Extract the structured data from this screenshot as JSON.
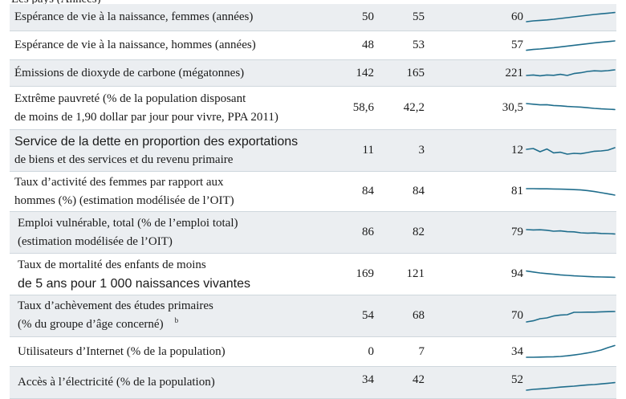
{
  "header_fragment": "Les pays (Années)",
  "rows": [
    {
      "label": [
        "Espérance de vie à la naissance, femmes (années)"
      ],
      "v1": "50",
      "v2": "55",
      "v3": "60",
      "trend": [
        0.25,
        0.3,
        0.33,
        0.36,
        0.4,
        0.45,
        0.5,
        0.55,
        0.6,
        0.65,
        0.7,
        0.74,
        0.78,
        0.82
      ]
    },
    {
      "label": [
        "Espérance de vie à la naissance, hommes (années)"
      ],
      "v1": "48",
      "v2": "53",
      "v3": "57",
      "trend": [
        0.22,
        0.27,
        0.3,
        0.34,
        0.38,
        0.43,
        0.48,
        0.53,
        0.58,
        0.63,
        0.68,
        0.72,
        0.76,
        0.8
      ]
    },
    {
      "label": [
        "Émissions de dioxyde de carbone (mégatonnes)"
      ],
      "v1": "142",
      "v2": "165",
      "v3": "221",
      "trend": [
        0.35,
        0.38,
        0.33,
        0.38,
        0.36,
        0.42,
        0.35,
        0.47,
        0.52,
        0.6,
        0.64,
        0.62,
        0.65,
        0.7
      ]
    },
    {
      "label": [
        "Extrême pauvreté (% de la population disposant",
        "de moins de 1,90 dollar par jour pour vivre, PPA 2011)"
      ],
      "v1": "58,6",
      "v2": "42,2",
      "v3": "30,5",
      "trend": [
        0.8,
        0.76,
        0.72,
        0.73,
        0.68,
        0.66,
        0.62,
        0.6,
        0.58,
        0.54,
        0.5,
        0.47,
        0.45,
        0.43
      ]
    },
    {
      "label": [
        "Service de la dette en proportion des exportations",
        "de biens et des services et du revenu primaire"
      ],
      "sans_first": true,
      "v1": "11",
      "v2": "3",
      "v3": "12",
      "trend": [
        0.6,
        0.65,
        0.45,
        0.62,
        0.38,
        0.42,
        0.3,
        0.35,
        0.33,
        0.4,
        0.48,
        0.5,
        0.55,
        0.7
      ]
    },
    {
      "label": [
        "Taux d’activité des femmes par rapport aux",
        "hommes (%) (estimation modélisée de l’OIT)"
      ],
      "v1": "84",
      "v2": "84",
      "v3": "81",
      "trend": [
        0.7,
        0.7,
        0.69,
        0.69,
        0.68,
        0.67,
        0.66,
        0.64,
        0.62,
        0.58,
        0.52,
        0.45,
        0.38,
        0.3
      ]
    },
    {
      "label": [
        "Emploi vulnérable, total (% de l’emploi total)",
        "(estimation modélisée de l’OIT)"
      ],
      "v1": "86",
      "v2": "82",
      "v3": "79",
      "trend": [
        0.7,
        0.68,
        0.69,
        0.66,
        0.6,
        0.62,
        0.57,
        0.56,
        0.5,
        0.48,
        0.49,
        0.46,
        0.45,
        0.43
      ]
    },
    {
      "label": [
        "Taux de mortalité des enfants de moins",
        "de 5 ans pour 1 000 naissances vivantes"
      ],
      "sans_second": true,
      "v1": "169",
      "v2": "121",
      "v3": "94",
      "trend": [
        0.72,
        0.66,
        0.6,
        0.56,
        0.52,
        0.48,
        0.45,
        0.42,
        0.4,
        0.38,
        0.36,
        0.35,
        0.34,
        0.33
      ]
    },
    {
      "label": [
        "Taux d’achèvement des études primaires",
        "(% du groupe d’âge concerné)"
      ],
      "sup": "b",
      "v1": "54",
      "v2": "68",
      "v3": "70",
      "trend": [
        0.15,
        0.22,
        0.35,
        0.4,
        0.52,
        0.58,
        0.6,
        0.75,
        0.75,
        0.76,
        0.76,
        0.78,
        0.79,
        0.8
      ]
    },
    {
      "label": [
        "Utilisateurs d’Internet (% de la population)"
      ],
      "v1": "0",
      "v2": "7",
      "v3": "34",
      "trend": [
        0.15,
        0.15,
        0.16,
        0.17,
        0.18,
        0.2,
        0.24,
        0.29,
        0.35,
        0.42,
        0.5,
        0.6,
        0.75,
        0.88
      ]
    },
    {
      "label": [
        "Accès à l’électricité (% de la population)"
      ],
      "v1": "34",
      "v2": "42",
      "v3": "52",
      "trend": [
        0.25,
        0.3,
        0.33,
        0.36,
        0.4,
        0.44,
        0.47,
        0.5,
        0.54,
        0.58,
        0.6,
        0.64,
        0.68,
        0.72
      ]
    }
  ]
}
